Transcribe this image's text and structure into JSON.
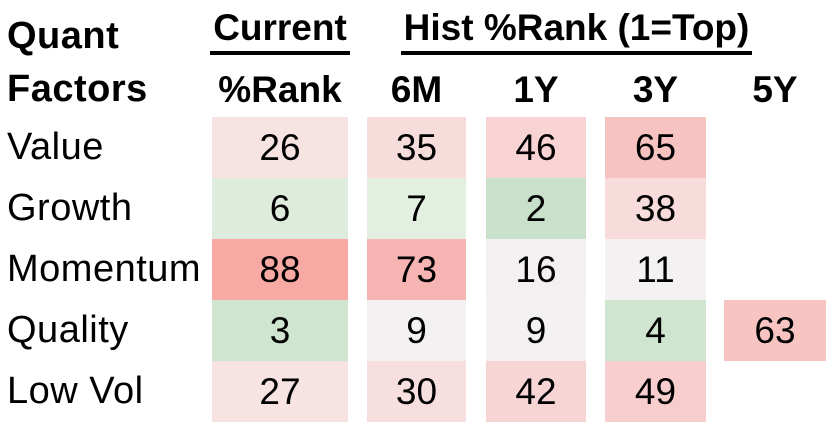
{
  "title": {
    "line1": "Quant",
    "line2": "Factors"
  },
  "headers": {
    "current_group": "Current",
    "hist_group": "Hist %Rank (1=Top)",
    "subheaders": [
      "%Rank",
      "6M",
      "1Y",
      "3Y",
      "5Y"
    ]
  },
  "chart_data": {
    "type": "heatmap",
    "title": "Quant Factors",
    "column_group_labels": {
      "current": "Current",
      "hist": "Hist %Rank (1=Top)"
    },
    "columns": [
      "Current %Rank",
      "6M",
      "1Y",
      "3Y",
      "5Y"
    ],
    "rows": [
      "Value",
      "Growth",
      "Momentum",
      "Quality",
      "Low Vol"
    ],
    "values": [
      [
        26,
        35,
        46,
        65,
        null
      ],
      [
        6,
        7,
        2,
        38,
        null
      ],
      [
        88,
        73,
        16,
        11,
        null
      ],
      [
        3,
        9,
        9,
        4,
        63
      ],
      [
        27,
        30,
        42,
        49,
        null
      ]
    ],
    "cell_colors": [
      [
        "#f8e3e3",
        "#f7dcdc",
        "#f8d3d3",
        "#f6c3c1",
        null
      ],
      [
        "#ddecdc",
        "#e2efe1",
        "#c9e1ca",
        "#f8dcdb",
        null
      ],
      [
        "#f9a9a4",
        "#f6b5b3",
        "#f4eff0",
        "#f3f1f1",
        null
      ],
      [
        "#cfe5cf",
        "#f3f1f2",
        "#f3f1f2",
        "#d0e5d0",
        "#f7c4c1"
      ],
      [
        "#f8e3e3",
        "#f8dfdf",
        "#f8d5d5",
        "#f7cecd",
        null
      ]
    ],
    "color_scale": {
      "low_rank": "#c9e1ca",
      "mid_rank": "#f3f1f2",
      "high_rank": "#f9a9a4"
    },
    "scale_note": "1=Top"
  }
}
